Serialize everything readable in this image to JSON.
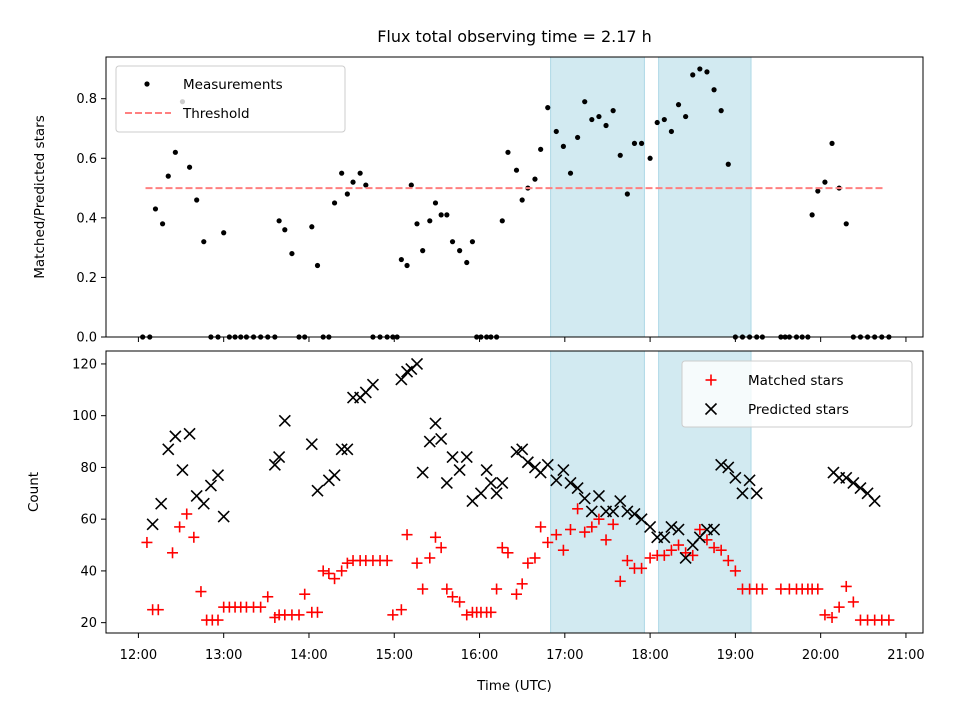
{
  "chart_data": [
    {
      "type": "scatter",
      "title": "Flux total observing time = 2.17 h",
      "ylabel": "Matched/Predicted stars",
      "xlabel": "",
      "xlim": [
        11.62,
        21.2
      ],
      "ylim": [
        0,
        0.94
      ],
      "yticks": [
        "0.0",
        "0.2",
        "0.4",
        "0.6",
        "0.8"
      ],
      "ytick_values": [
        0,
        0.2,
        0.4,
        0.6,
        0.8
      ],
      "shaded_intervals": [
        [
          "16:50",
          "17:56"
        ],
        [
          "18:06",
          "19:11"
        ]
      ],
      "shade_color": "#add8e6",
      "legend": {
        "placement": "top-left",
        "entries": [
          "Measurements",
          "Threshold"
        ]
      },
      "series": [
        {
          "name": "Measurements",
          "color": "#000000",
          "marker": "dot",
          "x": [
            "12:03",
            "12:08",
            "12:12",
            "12:17",
            "12:21",
            "12:26",
            "12:31",
            "12:36",
            "12:41",
            "12:46",
            "12:51",
            "12:56",
            "13:00",
            "13:04",
            "13:08",
            "13:12",
            "13:16",
            "13:21",
            "13:26",
            "13:31",
            "13:36",
            "13:39",
            "13:43",
            "13:48",
            "13:53",
            "13:57",
            "14:02",
            "14:06",
            "14:10",
            "14:14",
            "14:18",
            "14:23",
            "14:27",
            "14:31",
            "14:36",
            "14:40",
            "14:45",
            "14:50",
            "14:55",
            "14:59",
            "15:02",
            "15:05",
            "15:09",
            "15:12",
            "15:16",
            "15:20",
            "15:25",
            "15:29",
            "15:33",
            "15:37",
            "15:41",
            "15:46",
            "15:51",
            "15:55",
            "15:58",
            "16:01",
            "16:05",
            "16:08",
            "16:12",
            "16:16",
            "16:20",
            "16:26",
            "16:30",
            "16:34",
            "16:39",
            "16:43",
            "16:48",
            "16:54",
            "16:59",
            "17:04",
            "17:09",
            "17:14",
            "17:19",
            "17:24",
            "17:29",
            "17:34",
            "17:39",
            "17:44",
            "17:49",
            "17:54",
            "18:00",
            "18:05",
            "18:10",
            "18:15",
            "18:20",
            "18:25",
            "18:30",
            "18:35",
            "18:40",
            "18:45",
            "18:50",
            "18:55",
            "19:00",
            "19:05",
            "19:10",
            "19:15",
            "19:19",
            "19:32",
            "19:35",
            "19:38",
            "19:43",
            "19:47",
            "19:51",
            "19:54",
            "19:58",
            "20:03",
            "20:08",
            "20:13",
            "20:18",
            "20:23",
            "20:28",
            "20:33",
            "20:38",
            "20:43",
            "20:48"
          ],
          "y": [
            0.0,
            0.0,
            0.43,
            0.38,
            0.54,
            0.62,
            0.79,
            0.57,
            0.46,
            0.32,
            0.0,
            0.0,
            0.35,
            0.0,
            0.0,
            0.0,
            0.0,
            0.0,
            0.0,
            0.0,
            0.0,
            0.39,
            0.36,
            0.28,
            0.0,
            0.0,
            0.37,
            0.24,
            0.0,
            0.0,
            0.45,
            0.55,
            0.48,
            0.52,
            0.55,
            0.51,
            0.0,
            0.0,
            0.0,
            0.0,
            0.0,
            0.26,
            0.24,
            0.51,
            0.38,
            0.29,
            0.39,
            0.45,
            0.41,
            0.41,
            0.32,
            0.29,
            0.25,
            0.32,
            0.0,
            0.0,
            0.0,
            0.0,
            0.0,
            0.39,
            0.62,
            0.56,
            0.46,
            0.5,
            0.53,
            0.63,
            0.77,
            0.69,
            0.64,
            0.55,
            0.67,
            0.79,
            0.73,
            0.74,
            0.71,
            0.76,
            0.61,
            0.48,
            0.65,
            0.65,
            0.6,
            0.72,
            0.73,
            0.69,
            0.78,
            0.74,
            0.88,
            0.9,
            0.89,
            0.83,
            0.76,
            0.58,
            0.0,
            0.0,
            0.0,
            0.0,
            0.0,
            0.0,
            0.0,
            0.0,
            0.0,
            0.0,
            0.0,
            0.41,
            0.49,
            0.52,
            0.65,
            0.5,
            0.38,
            0.0,
            0.0,
            0.0,
            0.0,
            0.0,
            0.0
          ]
        },
        {
          "name": "Threshold",
          "color": "#ff8080",
          "style": "dashed",
          "x": [
            "12:05",
            "20:45"
          ],
          "y": [
            0.5,
            0.5
          ]
        }
      ]
    },
    {
      "type": "scatter",
      "title": "",
      "ylabel": "Count",
      "xlabel": "Time (UTC)",
      "xlim": [
        11.62,
        21.2
      ],
      "ylim": [
        16,
        125
      ],
      "xticks": [
        "12:00",
        "13:00",
        "14:00",
        "15:00",
        "16:00",
        "17:00",
        "18:00",
        "19:00",
        "20:00",
        "21:00"
      ],
      "yticks": [
        "20",
        "40",
        "60",
        "80",
        "100",
        "120"
      ],
      "ytick_values": [
        20,
        40,
        60,
        80,
        100,
        120
      ],
      "shaded_intervals": [
        [
          "16:50",
          "17:56"
        ],
        [
          "18:06",
          "19:11"
        ]
      ],
      "shade_color": "#add8e6",
      "legend": {
        "placement": "top-right",
        "entries": [
          "Matched stars",
          "Predicted stars"
        ]
      },
      "series": [
        {
          "name": "Matched stars",
          "color": "#ff0000",
          "marker": "plus",
          "x": [
            "12:06",
            "12:10",
            "12:14",
            "12:24",
            "12:29",
            "12:34",
            "12:39",
            "12:44",
            "12:48",
            "12:52",
            "12:56",
            "13:00",
            "13:04",
            "13:08",
            "13:12",
            "13:16",
            "13:21",
            "13:26",
            "13:31",
            "13:36",
            "13:39",
            "13:43",
            "13:48",
            "13:53",
            "13:57",
            "14:02",
            "14:06",
            "14:10",
            "14:14",
            "14:18",
            "14:23",
            "14:27",
            "14:31",
            "14:36",
            "14:40",
            "14:45",
            "14:50",
            "14:55",
            "14:59",
            "15:05",
            "15:09",
            "15:16",
            "15:20",
            "15:25",
            "15:29",
            "15:33",
            "15:37",
            "15:41",
            "15:46",
            "15:51",
            "15:55",
            "15:58",
            "16:01",
            "16:05",
            "16:08",
            "16:12",
            "16:16",
            "16:20",
            "16:26",
            "16:30",
            "16:34",
            "16:39",
            "16:43",
            "16:48",
            "16:54",
            "16:59",
            "17:04",
            "17:09",
            "17:14",
            "17:19",
            "17:24",
            "17:29",
            "17:34",
            "17:39",
            "17:44",
            "17:49",
            "17:54",
            "18:00",
            "18:05",
            "18:10",
            "18:15",
            "18:20",
            "18:25",
            "18:30",
            "18:35",
            "18:40",
            "18:45",
            "18:50",
            "18:55",
            "19:00",
            "19:05",
            "19:10",
            "19:15",
            "19:19",
            "19:32",
            "19:38",
            "19:43",
            "19:47",
            "19:51",
            "19:54",
            "19:58",
            "20:03",
            "20:08",
            "20:13",
            "20:18",
            "20:23",
            "20:28",
            "20:33",
            "20:38",
            "20:43",
            "20:48"
          ],
          "y": [
            51,
            25,
            25,
            47,
            57,
            62,
            53,
            32,
            21,
            21,
            21,
            26,
            26,
            26,
            26,
            26,
            26,
            26,
            30,
            22,
            23,
            23,
            23,
            23,
            31,
            24,
            24,
            40,
            39,
            37,
            40,
            43,
            44,
            44,
            44,
            44,
            44,
            44,
            23,
            25,
            54,
            43,
            33,
            45,
            53,
            49,
            33,
            30,
            28,
            23,
            24,
            24,
            24,
            24,
            24,
            33,
            49,
            47,
            31,
            35,
            43,
            45,
            57,
            51,
            54,
            48,
            56,
            64,
            55,
            57,
            60,
            52,
            58,
            36,
            44,
            41,
            41,
            45,
            46,
            46,
            48,
            50,
            47,
            46,
            56,
            52,
            49,
            48,
            44,
            40,
            33,
            33,
            33,
            33,
            33,
            33,
            33,
            33,
            33,
            33,
            33,
            23,
            22,
            26,
            34,
            28,
            21,
            21,
            21,
            21,
            21
          ]
        },
        {
          "name": "Predicted stars",
          "color": "#000000",
          "marker": "x",
          "x": [
            "12:10",
            "12:16",
            "12:21",
            "12:26",
            "12:31",
            "12:36",
            "12:41",
            "12:46",
            "12:51",
            "12:56",
            "13:00",
            "13:36",
            "13:39",
            "13:43",
            "14:02",
            "14:06",
            "14:14",
            "14:18",
            "14:23",
            "14:27",
            "14:31",
            "14:36",
            "14:40",
            "14:45",
            "15:05",
            "15:09",
            "15:12",
            "15:16",
            "15:20",
            "15:25",
            "15:29",
            "15:33",
            "15:37",
            "15:41",
            "15:46",
            "15:51",
            "15:55",
            "16:01",
            "16:05",
            "16:08",
            "16:12",
            "16:16",
            "16:26",
            "16:30",
            "16:34",
            "16:39",
            "16:43",
            "16:48",
            "16:54",
            "16:59",
            "17:04",
            "17:09",
            "17:14",
            "17:19",
            "17:24",
            "17:29",
            "17:34",
            "17:39",
            "17:44",
            "17:49",
            "17:54",
            "18:00",
            "18:05",
            "18:10",
            "18:15",
            "18:20",
            "18:25",
            "18:30",
            "18:35",
            "18:40",
            "18:45",
            "18:50",
            "18:55",
            "19:00",
            "19:05",
            "19:10",
            "19:15",
            "20:09",
            "20:13",
            "20:18",
            "20:23",
            "20:28",
            "20:33",
            "20:38"
          ],
          "y": [
            58,
            66,
            87,
            92,
            79,
            93,
            69,
            66,
            73,
            77,
            61,
            81,
            84,
            98,
            89,
            71,
            75,
            77,
            87,
            87,
            107,
            107,
            109,
            112,
            114,
            117,
            118,
            120,
            78,
            90,
            97,
            91,
            74,
            84,
            79,
            84,
            67,
            70,
            79,
            74,
            70,
            74,
            86,
            87,
            82,
            80,
            78,
            81,
            75,
            79,
            74,
            72,
            68,
            63,
            69,
            63,
            63,
            67,
            63,
            62,
            60,
            57,
            53,
            53,
            57,
            56,
            45,
            50,
            53,
            56,
            56,
            81,
            80,
            76,
            70,
            75,
            70,
            78,
            76,
            76,
            74,
            72,
            70,
            67
          ]
        }
      ]
    }
  ]
}
